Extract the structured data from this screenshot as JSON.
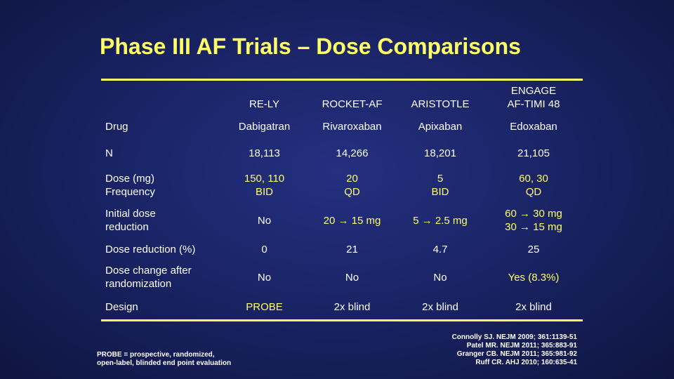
{
  "title": "Phase III AF Trials – Dose Comparisons",
  "columns": [
    "",
    "RE-LY",
    "ROCKET-AF",
    "ARISTOTLE",
    "ENGAGE AF-TIMI 48"
  ],
  "column_lines": {
    "engage_line1": "ENGAGE",
    "engage_line2": "AF-TIMI 48"
  },
  "rows": [
    {
      "label": "Drug",
      "cells": [
        "Dabigatran",
        "Rivaroxaban",
        "Apixaban",
        "Edoxaban"
      ]
    },
    {
      "label": "N",
      "cells": [
        "18,113",
        "14,266",
        "18,201",
        "21,105"
      ]
    },
    {
      "label_line1": "Dose (mg)",
      "label_line2": "Frequency",
      "cells": [
        {
          "line1": "150, 110",
          "line2": "BID"
        },
        {
          "line1": "20",
          "line2": "QD"
        },
        {
          "line1": "5",
          "line2": "BID"
        },
        {
          "line1": "60, 30",
          "line2": "QD"
        }
      ]
    },
    {
      "label_line1": "Initial dose",
      "label_line2": "reduction",
      "cells": [
        "No",
        "20 → 15 mg",
        "5 → 2.5 mg",
        {
          "line1": "60 → 30 mg",
          "line2": "30 → 15 mg"
        }
      ]
    },
    {
      "label": "Dose reduction (%)",
      "cells": [
        "0",
        "21",
        "4.7",
        "25"
      ]
    },
    {
      "label_line1": "Dose change after",
      "label_line2": "randomization",
      "cells": [
        "No",
        "No",
        "No",
        "Yes (8.3%)"
      ]
    },
    {
      "label": "Design",
      "cells": [
        "PROBE",
        "2x blind",
        "2x blind",
        "2x blind"
      ]
    }
  ],
  "footnote": {
    "line1": "PROBE = prospective, randomized,",
    "line2": "open-label, blinded end point evaluation"
  },
  "references": [
    "Connolly SJ. NEJM 2009; 361:1139-51",
    "Patel MR. NEJM 2011; 365:883-91",
    "Granger CB. NEJM 2011; 365:981-92",
    "Ruff CR. AHJ 2010; 160:635-41"
  ],
  "colors": {
    "title": "#ffff66",
    "accent_text": "#ffff66",
    "body_text": "#ffffff",
    "background": "#1a2466"
  }
}
